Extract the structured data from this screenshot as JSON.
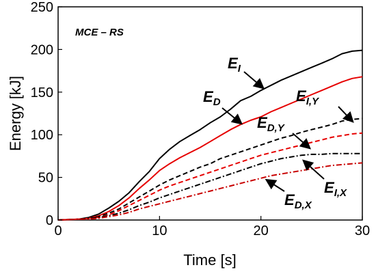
{
  "chart_data": {
    "type": "line",
    "title": "MCE – RS",
    "xlabel": "Time [s]",
    "ylabel": "Energy [kJ]",
    "xlim": [
      0,
      30
    ],
    "ylim": [
      0,
      250
    ],
    "xticks": [
      "0",
      "10",
      "20",
      "30"
    ],
    "yticks": [
      "0",
      "50",
      "100",
      "150",
      "200",
      "250"
    ],
    "grid": false,
    "legend": "none",
    "series": [
      {
        "id": "EI",
        "color": "#000000",
        "style": "solid",
        "x": [
          0,
          2,
          3,
          4,
          5,
          6,
          7,
          8,
          9,
          10,
          11,
          12,
          13,
          14,
          15,
          16,
          17,
          18,
          19,
          20,
          21,
          22,
          23,
          24,
          25,
          26,
          27,
          28,
          29,
          30
        ],
        "y": [
          0,
          1,
          3,
          7,
          14,
          22,
          32,
          45,
          57,
          72,
          83,
          92,
          99,
          106,
          114,
          121,
          130,
          140,
          145,
          152,
          158,
          164,
          169,
          174,
          179,
          184,
          189,
          195,
          198,
          199
        ]
      },
      {
        "id": "ED",
        "color": "#e60000",
        "style": "solid",
        "x": [
          0,
          2,
          3,
          4,
          5,
          6,
          7,
          8,
          9,
          10,
          11,
          12,
          13,
          14,
          15,
          16,
          17,
          18,
          19,
          20,
          21,
          22,
          23,
          24,
          25,
          26,
          27,
          28,
          29,
          30
        ],
        "y": [
          0,
          1,
          2,
          5,
          10,
          17,
          26,
          37,
          47,
          58,
          66,
          73,
          79,
          85,
          92,
          99,
          106,
          112,
          117,
          121,
          127,
          132,
          137,
          142,
          147,
          152,
          157,
          162,
          166,
          168
        ]
      },
      {
        "id": "EIY",
        "color": "#000000",
        "style": "dashed",
        "x": [
          0,
          2,
          3,
          4,
          5,
          6,
          7,
          8,
          9,
          10,
          11,
          12,
          13,
          14,
          15,
          16,
          17,
          18,
          19,
          20,
          21,
          22,
          23,
          24,
          25,
          26,
          27,
          28,
          29,
          30
        ],
        "y": [
          0,
          1,
          2,
          4,
          8,
          13,
          20,
          27,
          34,
          41,
          47,
          52,
          57,
          62,
          66,
          72,
          76,
          80,
          84,
          88,
          92,
          96,
          99,
          103,
          106,
          109,
          112,
          116,
          118,
          119
        ]
      },
      {
        "id": "EDY",
        "color": "#e60000",
        "style": "dashed",
        "x": [
          0,
          2,
          3,
          4,
          5,
          6,
          7,
          8,
          9,
          10,
          11,
          12,
          13,
          14,
          15,
          16,
          17,
          18,
          19,
          20,
          21,
          22,
          23,
          24,
          25,
          26,
          27,
          28,
          29,
          30
        ],
        "y": [
          0,
          1,
          2,
          3,
          6,
          11,
          17,
          23,
          29,
          35,
          40,
          44,
          48,
          52,
          56,
          60,
          64,
          68,
          72,
          76,
          79,
          82,
          85,
          88,
          91,
          94,
          97,
          99,
          101,
          102
        ]
      },
      {
        "id": "EIX",
        "color": "#000000",
        "style": "dashdot",
        "x": [
          0,
          2,
          3,
          4,
          5,
          6,
          7,
          8,
          9,
          10,
          11,
          12,
          13,
          14,
          15,
          16,
          17,
          18,
          19,
          20,
          21,
          22,
          23,
          24,
          25,
          26,
          27,
          28,
          29,
          30
        ],
        "y": [
          0,
          1,
          2,
          3,
          5,
          8,
          12,
          17,
          21,
          26,
          30,
          34,
          38,
          42,
          46,
          50,
          54,
          58,
          62,
          66,
          69,
          72,
          74,
          76,
          77,
          77,
          78,
          78,
          78,
          78
        ]
      },
      {
        "id": "EDX",
        "color": "#c80000",
        "style": "dashdot",
        "x": [
          0,
          2,
          3,
          4,
          5,
          6,
          7,
          8,
          9,
          10,
          11,
          12,
          13,
          14,
          15,
          16,
          17,
          18,
          19,
          20,
          21,
          22,
          23,
          24,
          25,
          26,
          27,
          28,
          29,
          30
        ],
        "y": [
          0,
          1,
          1,
          2,
          4,
          6,
          9,
          13,
          16,
          19,
          22,
          25,
          28,
          31,
          34,
          37,
          40,
          43,
          46,
          49,
          52,
          54,
          56,
          58,
          60,
          62,
          64,
          65,
          66,
          67
        ]
      }
    ]
  },
  "annotations": [
    {
      "id": "EI",
      "main": "E",
      "sub": "I"
    },
    {
      "id": "ED",
      "main": "E",
      "sub": "D"
    },
    {
      "id": "EIY",
      "main": "E",
      "sub": "I,Y"
    },
    {
      "id": "EDY",
      "main": "E",
      "sub": "D,Y"
    },
    {
      "id": "EIX",
      "main": "E",
      "sub": "I,X"
    },
    {
      "id": "EDX",
      "main": "E",
      "sub": "D,X"
    }
  ]
}
